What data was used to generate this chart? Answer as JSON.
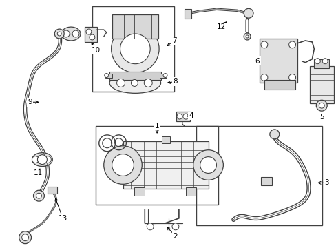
{
  "background_color": "#ffffff",
  "line_color": "#404040",
  "text_color": "#000000",
  "label_fontsize": 7.5,
  "figsize": [
    4.89,
    3.6
  ],
  "dpi": 100
}
